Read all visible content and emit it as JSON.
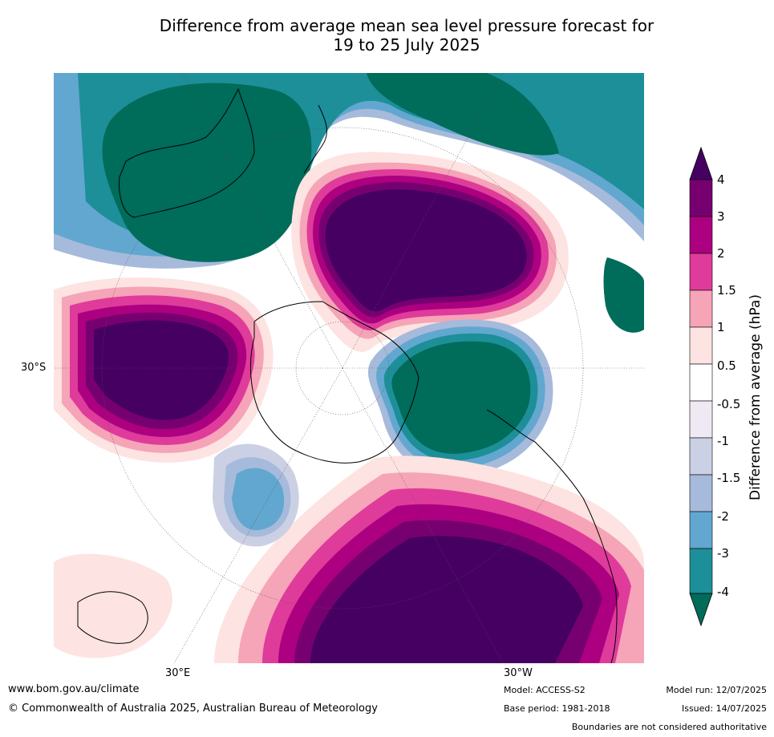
{
  "title": {
    "line1": "Difference from average mean sea level pressure forecast for",
    "line2": "19 to 25 July 2025"
  },
  "map": {
    "projection": "south-polar-stereographic",
    "lat_label": "30°S",
    "lon_labels": [
      "30°E",
      "30°W"
    ],
    "colors": {
      "background": "#ffffff",
      "coastline": "#000000",
      "graticule": "#555555"
    },
    "anomaly_regions": [
      {
        "name": "positive-high-pacific",
        "level": "≥4",
        "color": "#450062"
      },
      {
        "name": "positive-high-indian",
        "level": "≥4",
        "color": "#450062"
      },
      {
        "name": "positive-high-south-atlantic",
        "level": "≥4",
        "color": "#450062"
      },
      {
        "name": "negative-australia-region",
        "level": "≤-4",
        "color": "#006c5a"
      },
      {
        "name": "negative-drake-passage",
        "level": "≤-4",
        "color": "#006c5a"
      },
      {
        "name": "negative-north-pacific-east",
        "level": "≤-4",
        "color": "#006c5a"
      },
      {
        "name": "negative-southern-africa-south",
        "level": "-2 to -3",
        "color": "#62a7cf"
      }
    ]
  },
  "colorbar": {
    "title": "Difference from average (hPa)",
    "ticks": [
      "4",
      "3",
      "2",
      "1.5",
      "1",
      "0.5",
      "-0.5",
      "-1",
      "-1.5",
      "-2",
      "-3",
      "-4"
    ],
    "colors": [
      "#450062",
      "#770070",
      "#ac0080",
      "#df3b9b",
      "#f6a4b7",
      "#fde3e1",
      "#ffffff",
      "#efe9f3",
      "#ccd0e4",
      "#a6badb",
      "#62a7cf",
      "#1c8f99",
      "#006c5a"
    ]
  },
  "footer": {
    "website": "www.bom.gov.au/climate",
    "copyright": "© Commonwealth of Australia 2025, Australian Bureau of Meteorology",
    "model": "Model: ACCESS-S2",
    "base_period": "Base period: 1981-2018",
    "model_run": "Model run: 12/07/2025",
    "issued": "Issued: 14/07/2025",
    "disclaimer": "Boundaries are not considered authoritative"
  }
}
